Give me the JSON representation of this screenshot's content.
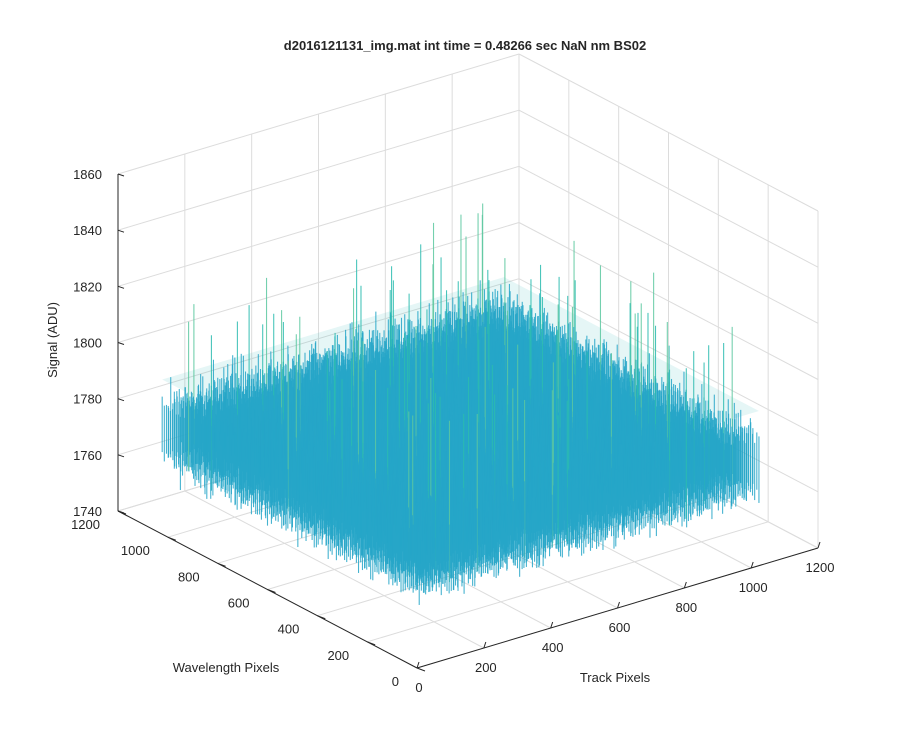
{
  "chart_data": {
    "type": "surface",
    "title": "d2016121131_img.mat int time = 0.48266 sec  NaN nm BS02",
    "xlabel": "Track Pixels",
    "ylabel": "Wavelength Pixels",
    "zlabel": "Signal (ADU)",
    "xlim": [
      0,
      1200
    ],
    "ylim": [
      0,
      1200
    ],
    "zlim": [
      1740,
      1860
    ],
    "xticks": [
      "0",
      "200",
      "400",
      "600",
      "800",
      "1000",
      "1200"
    ],
    "yticks": [
      "0",
      "200",
      "400",
      "600",
      "800",
      "1000",
      "1200"
    ],
    "zticks": [
      "1740",
      "1760",
      "1780",
      "1800",
      "1820",
      "1840",
      "1860"
    ],
    "grid": true,
    "surface": {
      "x_range": [
        1,
        1024
      ],
      "y_range": [
        1,
        1024
      ],
      "mean_signal": 1780,
      "noise_min": 1748,
      "noise_max": 1855,
      "colormap": [
        "#1565c0",
        "#1e88e5",
        "#26a6c8",
        "#2bbcb0",
        "#5cc8a0",
        "#a8cf6a"
      ]
    }
  }
}
